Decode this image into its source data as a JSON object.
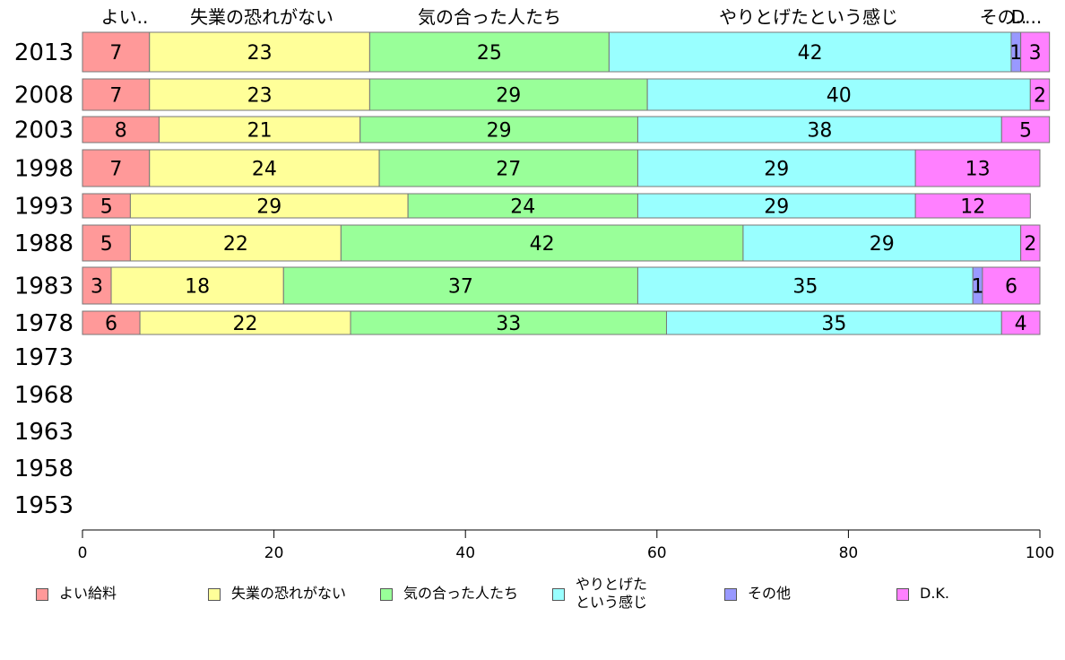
{
  "chart_data": {
    "type": "bar",
    "orientation": "horizontal",
    "stacked": true,
    "xlim": [
      0,
      100
    ],
    "x_ticks": [
      "0",
      "20",
      "40",
      "60",
      "80",
      "100"
    ],
    "categories": [
      "2013",
      "2008",
      "2003",
      "1998",
      "1993",
      "1988",
      "1983",
      "1978",
      "1973",
      "1968",
      "1963",
      "1958",
      "1953"
    ],
    "top_labels": [
      "よい..",
      "失業の恐れがない",
      "気の合った人たち",
      "やりとげたという感じ",
      "その..",
      "D..."
    ],
    "series": [
      {
        "name": "よい給料",
        "color": "#ff9999",
        "values": [
          7,
          7,
          8,
          7,
          5,
          5,
          3,
          6,
          null,
          null,
          null,
          null,
          null
        ]
      },
      {
        "name": "失業の恐れがない",
        "color": "#ffff99",
        "values": [
          23,
          23,
          21,
          24,
          29,
          22,
          18,
          22,
          null,
          null,
          null,
          null,
          null
        ]
      },
      {
        "name": "気の合った人たち",
        "color": "#99ff99",
        "values": [
          25,
          29,
          29,
          27,
          24,
          42,
          37,
          33,
          null,
          null,
          null,
          null,
          null
        ]
      },
      {
        "name": "やりとげた\nという感じ",
        "color": "#99ffff",
        "values": [
          42,
          40,
          38,
          29,
          29,
          29,
          35,
          35,
          null,
          null,
          null,
          null,
          null
        ]
      },
      {
        "name": "その他",
        "color": "#9999ff",
        "values": [
          1,
          0,
          0,
          0,
          0,
          0,
          1,
          0,
          null,
          null,
          null,
          null,
          null
        ]
      },
      {
        "name": "D.K.",
        "color": "#ff80ff",
        "values": [
          3,
          2,
          5,
          13,
          12,
          2,
          6,
          4,
          null,
          null,
          null,
          null,
          null
        ]
      }
    ],
    "legend_position": "bottom",
    "grid": false
  }
}
